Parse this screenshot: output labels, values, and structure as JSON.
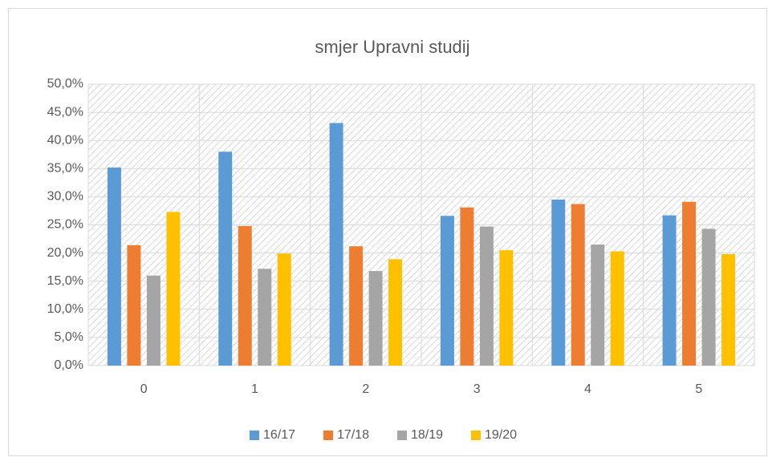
{
  "chart_data": {
    "type": "bar",
    "title": "smjer Upravni studij",
    "categories": [
      "0",
      "1",
      "2",
      "3",
      "4",
      "5"
    ],
    "series": [
      {
        "name": "16/17",
        "color": "#5b9bd5",
        "values": [
          35.2,
          38.0,
          43.1,
          26.6,
          29.5,
          26.7
        ]
      },
      {
        "name": "17/18",
        "color": "#ed7d31",
        "values": [
          21.4,
          24.8,
          21.2,
          28.1,
          28.7,
          29.1
        ]
      },
      {
        "name": "18/19",
        "color": "#a5a5a5",
        "values": [
          16.0,
          17.2,
          16.8,
          24.7,
          21.5,
          24.3
        ]
      },
      {
        "name": "19/20",
        "color": "#ffc000",
        "values": [
          27.3,
          19.9,
          18.9,
          20.5,
          20.3,
          19.8
        ]
      }
    ],
    "ylim": [
      0,
      50
    ],
    "yticks": [
      {
        "value": 0,
        "label": "0,0%"
      },
      {
        "value": 5,
        "label": "5,0%"
      },
      {
        "value": 10,
        "label": "10,0%"
      },
      {
        "value": 15,
        "label": "15,0%"
      },
      {
        "value": 20,
        "label": "20,0%"
      },
      {
        "value": 25,
        "label": "25,0%"
      },
      {
        "value": 30,
        "label": "30,0%"
      },
      {
        "value": 35,
        "label": "35,0%"
      },
      {
        "value": 40,
        "label": "40,0%"
      },
      {
        "value": 45,
        "label": "45,0%"
      },
      {
        "value": 50,
        "label": "50,0%"
      }
    ],
    "grid": true,
    "legend": "bottom"
  }
}
